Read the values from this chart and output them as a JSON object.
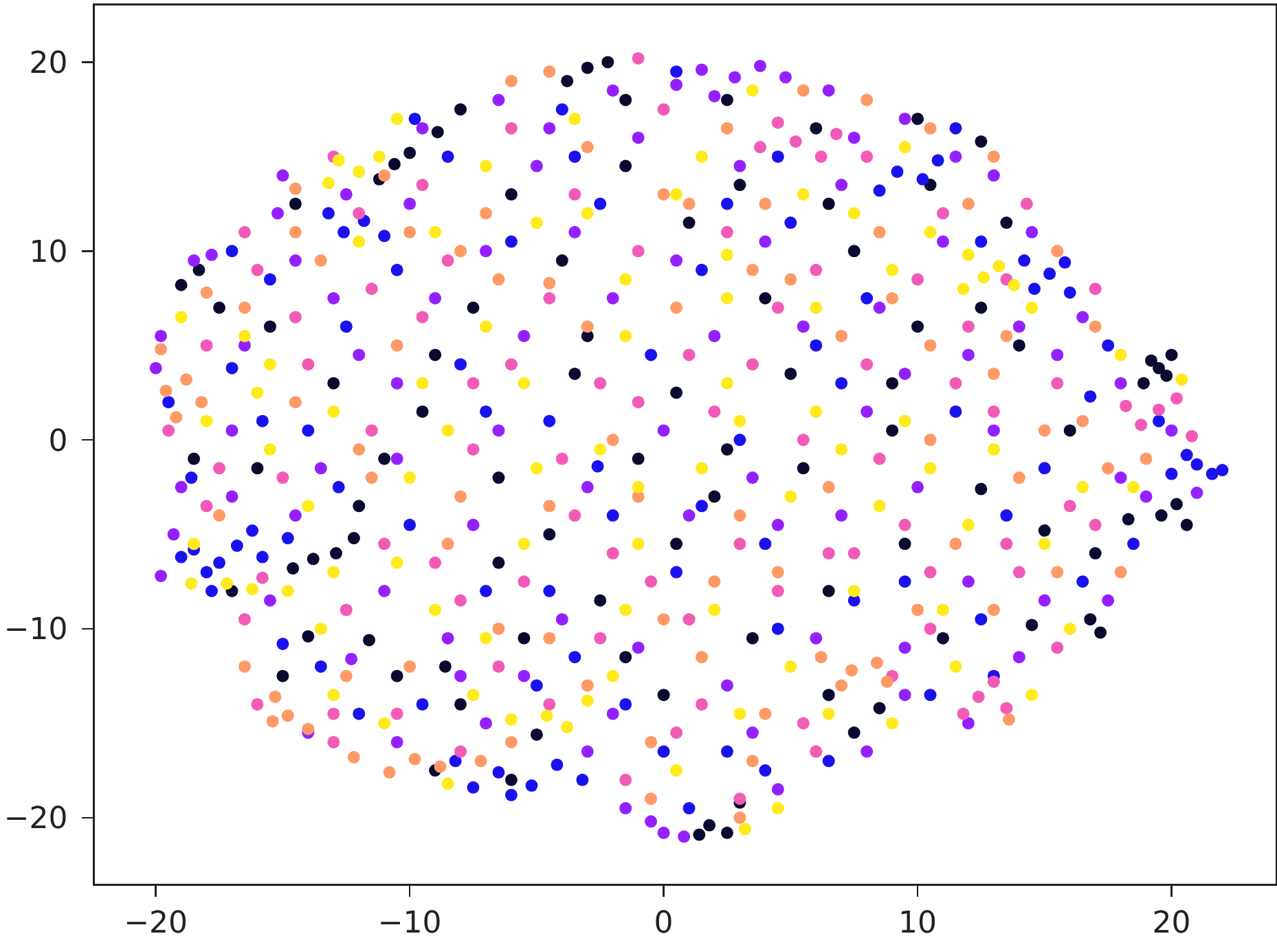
{
  "chart_data": {
    "type": "scatter",
    "xlim": [
      -22.4,
      24.1
    ],
    "ylim": [
      -23.5,
      23.0
    ],
    "xticks": [
      -20,
      -10,
      0,
      10,
      20
    ],
    "yticks": [
      -20,
      -10,
      0,
      10,
      20
    ],
    "grid": false,
    "marker": "circle",
    "series": [
      {
        "color": "#0a0a30",
        "x": [
          19.5,
          19.8,
          19.2,
          20.2,
          19.6,
          -10.6,
          -10.0,
          -3.0,
          -2.2,
          1.8,
          2.5,
          -13.8,
          -12.9,
          -19.0,
          -17.5,
          -8.6,
          -11.6,
          -14.0,
          -5.0,
          6.5,
          8.5,
          11.0,
          14.5,
          16.8,
          15.0,
          12.5,
          9.0,
          5.5,
          2.0,
          -1.0,
          0.5,
          -3.5,
          -6.5,
          -9.5,
          -13.0,
          -16.0,
          -7.5,
          -4.0,
          1.0,
          4.0,
          7.5,
          10.5,
          12.5,
          6.0,
          -6.0,
          -14.5,
          -17.0,
          -2.5,
          3.5,
          0.0,
          -9.0,
          -6.0,
          17.0,
          14.0,
          10.0,
          -12.0,
          -1.5,
          2.5,
          -8.0,
          -18.5,
          9.5,
          -4.5,
          5.0,
          18.9,
          20.0,
          18.3,
          20.6,
          -11.2,
          -8.9,
          -3.8,
          -1.5,
          3.0,
          1.4,
          -14.6,
          -12.2,
          -18.3,
          -8.0,
          -10.5,
          -6.5,
          -3.0,
          0.5,
          3.0,
          6.5,
          10.0,
          13.5,
          16.0,
          17.2,
          -15.5,
          -11.0,
          -5.5,
          -1.5,
          2.5,
          6.5,
          9.0,
          12.5,
          -15.0,
          -9.0,
          7.5
        ],
        "values": [
          3.8,
          3.4,
          4.2,
          -3.4,
          -4.0,
          14.6,
          15.2,
          19.7,
          20.0,
          -20.4,
          -20.8,
          -6.3,
          -6.0,
          8.2,
          7.0,
          -12.0,
          -10.6,
          -10.4,
          -15.6,
          -13.5,
          -14.2,
          -10.5,
          -9.8,
          -9.5,
          -4.8,
          -2.6,
          0.5,
          -1.5,
          -3.0,
          -1.0,
          2.5,
          3.5,
          -2.0,
          1.5,
          3.0,
          -1.5,
          7.0,
          9.5,
          11.5,
          7.5,
          10.0,
          13.5,
          15.8,
          16.5,
          13.0,
          12.5,
          -8.0,
          -8.5,
          -10.5,
          -13.5,
          -17.5,
          -18.0,
          -6.0,
          5.0,
          6.0,
          -3.5,
          14.5,
          18.0,
          17.5,
          -1.0,
          -5.5,
          -5.0,
          3.5,
          3.0,
          4.5,
          -4.2,
          -4.5,
          13.8,
          16.3,
          19.0,
          18.0,
          -19.2,
          -20.9,
          -6.8,
          -5.2,
          9.0,
          -14.0,
          -12.5,
          -6.5,
          5.5,
          -5.5,
          13.5,
          12.5,
          17.0,
          11.5,
          0.5,
          -10.2,
          6.0,
          -1.0,
          -10.5,
          -11.5,
          -0.5,
          -8.0,
          3.0,
          7.0,
          -12.5,
          4.5,
          -15.5
        ]
      },
      {
        "color": "#1a12ee",
        "x": [
          -18.5,
          -17.5,
          -16.8,
          -18.0,
          -6.5,
          -5.2,
          -7.5,
          -4.2,
          15.2,
          14.6,
          16.0,
          21.0,
          21.6,
          20.6,
          9.2,
          10.2,
          -11.8,
          -12.6,
          -13.5,
          -12.0,
          -9.5,
          -15.0,
          -19.5,
          -17.0,
          -15.5,
          -12.5,
          -10.0,
          -7.0,
          -3.5,
          0.5,
          4.0,
          7.5,
          10.5,
          13.0,
          16.5,
          18.5,
          15.0,
          11.5,
          7.0,
          3.0,
          -0.5,
          -4.5,
          -8.0,
          -10.5,
          -6.0,
          -2.5,
          1.5,
          5.0,
          8.0,
          12.5,
          -8.5,
          -4.0,
          0.5,
          4.5,
          11.5,
          -17.0,
          -1.5,
          2.5,
          1.0,
          6.5,
          19.5,
          17.5,
          -14.0,
          -2.0,
          -15.8,
          -14.8,
          -19.0,
          -16.2,
          -17.8,
          -8.2,
          -3.2,
          -6.0,
          14.2,
          15.8,
          22.0,
          20.0,
          -11.0,
          -13.2,
          8.5,
          10.8,
          -2.6,
          1.5,
          4.5,
          12.5,
          -12.8,
          -15.8,
          -18.6,
          -7.0,
          -4.5,
          6.0,
          9.5,
          13.5,
          16.8,
          2.5,
          -3.5,
          -9.8,
          0.0,
          4.0,
          -5.0
        ],
        "values": [
          -5.8,
          -6.5,
          -5.6,
          -7.0,
          -17.6,
          -18.3,
          -18.4,
          -17.2,
          8.8,
          8.0,
          7.8,
          -1.3,
          -1.8,
          -0.8,
          14.2,
          13.8,
          11.6,
          11.0,
          -12.0,
          -14.5,
          -14.0,
          -10.8,
          2.0,
          3.8,
          8.5,
          6.0,
          -4.5,
          -8.0,
          -11.5,
          -7.0,
          -5.5,
          -8.5,
          -13.5,
          -12.5,
          -7.5,
          -5.5,
          -1.5,
          1.5,
          3.0,
          0.0,
          4.5,
          1.0,
          4.0,
          9.0,
          10.5,
          12.5,
          9.0,
          11.5,
          7.5,
          10.5,
          15.0,
          17.5,
          19.5,
          15.0,
          16.5,
          10.0,
          -14.0,
          -16.5,
          -19.5,
          -17.0,
          1.0,
          5.0,
          0.5,
          -4.0,
          -6.2,
          -5.2,
          -6.2,
          -4.8,
          -8.0,
          -17.0,
          -18.0,
          -18.8,
          9.5,
          9.4,
          -1.6,
          -1.8,
          10.8,
          12.0,
          13.2,
          14.8,
          -1.4,
          -3.5,
          -10.0,
          -9.5,
          -2.5,
          1.0,
          -2.0,
          1.5,
          -8.0,
          5.0,
          -7.5,
          -4.0,
          2.3,
          12.5,
          15.0,
          17.0,
          -16.5,
          -17.5,
          -13.0
        ]
      },
      {
        "color": "#9420ff",
        "x": [
          1.5,
          2.8,
          3.8,
          -0.5,
          0.8,
          -15.0,
          -18.5,
          -19.8,
          -19.0,
          -19.8,
          -15.5,
          -14.0,
          -10.5,
          -7.0,
          -3.0,
          4.5,
          8.0,
          12.0,
          14.0,
          17.5,
          19.0,
          20.0,
          18.0,
          16.5,
          14.5,
          13.0,
          9.5,
          6.5,
          -2.0,
          -6.5,
          -9.5,
          -12.5,
          -14.5,
          -16.5,
          -17.0,
          -14.5,
          -11.0,
          -8.5,
          -5.5,
          -1.0,
          2.5,
          6.0,
          9.5,
          12.0,
          10.0,
          7.0,
          3.5,
          0.0,
          -3.0,
          -6.5,
          -10.5,
          -12.0,
          -9.0,
          -5.5,
          -2.0,
          2.0,
          5.5,
          9.5,
          13.0,
          14.0,
          11.0,
          7.0,
          3.0,
          -1.0,
          -5.0,
          -10.0,
          0.5,
          2.0,
          4.8,
          -1.5,
          0.0,
          -15.2,
          -17.8,
          -20.0,
          -19.3,
          -17.0,
          -12.3,
          -8.0,
          -2.0,
          3.5,
          9.5,
          15.0,
          18.0,
          21.0,
          15.5,
          12.0,
          8.0,
          4.5,
          1.0,
          -4.0,
          -7.5,
          -13.5,
          -10.5,
          -7.0,
          -3.5,
          0.5,
          4.0,
          8.5,
          11.5,
          7.5,
          -4.5,
          -13.0
        ],
        "values": [
          19.6,
          19.2,
          19.8,
          -20.2,
          -21.0,
          14.0,
          9.5,
          5.5,
          -2.5,
          -7.2,
          -8.5,
          -15.5,
          -16.0,
          -15.0,
          -16.5,
          -18.5,
          -16.5,
          -15.0,
          -11.5,
          -8.5,
          -3.0,
          0.5,
          3.0,
          6.5,
          11.0,
          14.0,
          17.0,
          18.5,
          18.5,
          18.0,
          16.5,
          13.0,
          9.5,
          5.0,
          0.5,
          -4.0,
          -8.0,
          -10.5,
          -12.5,
          -11.0,
          -13.0,
          -10.5,
          -11.0,
          -7.5,
          -2.5,
          -4.0,
          -2.0,
          0.5,
          -2.5,
          0.5,
          -1.0,
          4.5,
          7.5,
          5.5,
          7.5,
          5.5,
          6.0,
          3.5,
          0.5,
          6.0,
          10.5,
          13.5,
          14.5,
          16.0,
          14.5,
          12.5,
          18.8,
          18.2,
          19.2,
          -19.5,
          -20.8,
          12.0,
          9.8,
          3.8,
          -5.0,
          -3.0,
          -11.6,
          -12.5,
          -14.5,
          -15.5,
          -13.5,
          -8.5,
          -2.0,
          -2.8,
          4.5,
          4.5,
          1.5,
          -4.5,
          -4.0,
          -9.5,
          -4.5,
          -1.5,
          3.0,
          10.0,
          11.0,
          9.5,
          10.5,
          7.0,
          15.0,
          16.0,
          16.5,
          7.5
        ]
      },
      {
        "color": "#f25ab8",
        "x": [
          19.5,
          18.8,
          20.2,
          12.4,
          13.5,
          5.2,
          6.2,
          4.5,
          -16.0,
          -13.0,
          -8.0,
          -4.5,
          -1.5,
          3.0,
          5.5,
          9.0,
          15.5,
          16.0,
          13.5,
          10.5,
          7.5,
          4.5,
          1.0,
          -2.0,
          -5.5,
          -9.0,
          -12.5,
          -16.5,
          -18.0,
          -15.0,
          -11.5,
          -7.5,
          -4.0,
          -1.0,
          2.0,
          5.5,
          8.5,
          11.5,
          15.5,
          17.0,
          13.5,
          10.0,
          6.0,
          2.5,
          -1.0,
          -4.5,
          -8.5,
          -11.5,
          -14.5,
          -18.0,
          -19.5,
          -16.5,
          -13.0,
          -9.5,
          -6.0,
          -3.5,
          0.0,
          8.0,
          11.0,
          3.5,
          -7.5,
          0.5,
          18.2,
          20.8,
          13.0,
          11.8,
          6.8,
          3.8,
          -13.0,
          -10.5,
          -6.5,
          -2.5,
          1.5,
          6.0,
          10.5,
          14.0,
          17.0,
          13.0,
          9.5,
          6.5,
          3.0,
          -0.5,
          -3.5,
          -8.0,
          -11.0,
          -15.8,
          -17.5,
          -14.0,
          -9.5,
          -6.0,
          -2.5,
          1.0,
          4.5,
          8.0,
          12.0,
          14.3,
          -12.0,
          -16.0,
          -1.0
        ],
        "values": [
          1.6,
          0.8,
          2.2,
          -13.6,
          -14.2,
          15.8,
          15.0,
          16.8,
          -14.0,
          -16.0,
          -16.5,
          -14.0,
          -18.0,
          -19.0,
          -15.0,
          -12.5,
          -11.0,
          -3.5,
          -5.5,
          -7.0,
          -6.0,
          -8.0,
          -9.5,
          -6.0,
          -7.5,
          -6.5,
          -9.0,
          -9.5,
          -3.5,
          -2.0,
          0.5,
          -0.5,
          -1.0,
          2.0,
          1.5,
          0.0,
          -1.0,
          3.0,
          3.0,
          8.0,
          8.5,
          8.5,
          9.0,
          11.0,
          10.0,
          7.5,
          9.5,
          8.0,
          6.5,
          5.0,
          0.5,
          11.0,
          15.0,
          13.5,
          16.5,
          13.0,
          17.5,
          15.0,
          12.0,
          4.0,
          3.0,
          -15.5,
          1.8,
          0.2,
          -12.8,
          -14.5,
          16.2,
          15.5,
          -14.5,
          -14.5,
          -12.0,
          -10.5,
          -14.0,
          -16.5,
          -10.0,
          -7.0,
          -4.5,
          1.5,
          -4.5,
          -6.0,
          -5.5,
          -7.5,
          -4.0,
          -8.5,
          -5.5,
          -7.3,
          -1.5,
          4.0,
          6.5,
          4.0,
          3.0,
          4.5,
          7.0,
          4.0,
          6.0,
          12.5,
          12.0,
          9.0,
          20.2
        ]
      },
      {
        "color": "#ff9966",
        "x": [
          -14.8,
          -14.0,
          -15.3,
          -9.8,
          -8.8,
          -18.8,
          -19.6,
          -18.2,
          7.4,
          8.4,
          7.0,
          -16.5,
          -12.5,
          -10.0,
          -6.5,
          -3.0,
          1.5,
          4.0,
          10.0,
          13.0,
          15.5,
          18.0,
          17.5,
          14.0,
          10.5,
          6.5,
          3.0,
          -1.0,
          -4.5,
          -8.0,
          -11.5,
          -14.5,
          -16.5,
          -18.0,
          -13.5,
          -10.5,
          -6.5,
          -3.0,
          0.5,
          3.5,
          7.0,
          10.5,
          13.0,
          16.5,
          15.5,
          12.0,
          8.5,
          4.0,
          0.0,
          -3.0,
          -7.0,
          -11.0,
          -14.5,
          2.5,
          -4.5,
          8.0,
          -2.0,
          2.0,
          -6.0,
          3.0,
          -0.5,
          -15.4,
          -12.2,
          -10.8,
          -7.2,
          -19.8,
          -19.2,
          6.2,
          8.8,
          13.6,
          -17.5,
          -12.0,
          -8.5,
          -4.5,
          0.0,
          4.5,
          11.5,
          15.0,
          19.0,
          13.5,
          9.0,
          5.0,
          1.0,
          -4.5,
          -8.0,
          -10.0,
          -14.5,
          -6.0,
          5.5,
          10.5,
          13.0,
          17.0,
          -0.5,
          3.5
        ],
        "values": [
          -14.6,
          -15.3,
          -13.6,
          -16.9,
          -17.3,
          3.2,
          2.6,
          2.0,
          -12.2,
          -11.8,
          -13.0,
          -12.0,
          -12.5,
          -12.0,
          -10.0,
          -13.0,
          -11.5,
          -14.5,
          -9.0,
          -9.0,
          -7.0,
          -7.0,
          -1.5,
          -2.0,
          0.0,
          -2.5,
          -4.0,
          -3.0,
          -3.5,
          -3.0,
          -2.0,
          2.0,
          7.0,
          7.8,
          9.5,
          5.0,
          8.5,
          6.0,
          7.0,
          9.0,
          5.5,
          5.0,
          3.5,
          1.0,
          10.0,
          12.5,
          11.0,
          12.5,
          13.0,
          15.5,
          12.0,
          14.0,
          11.0,
          16.5,
          19.5,
          18.0,
          0.0,
          -7.5,
          -16.0,
          -20.0,
          -19.0,
          -14.9,
          -16.8,
          -17.6,
          -17.0,
          4.8,
          1.2,
          -11.5,
          -12.8,
          -14.8,
          -4.0,
          -0.5,
          -5.5,
          -10.5,
          -9.5,
          -7.0,
          -5.5,
          0.5,
          -1.0,
          5.5,
          7.5,
          8.5,
          12.5,
          8.3,
          10.0,
          11.0,
          13.3,
          19.0,
          18.5,
          16.5,
          15.0,
          6.0,
          -16.0,
          -17.0
        ]
      },
      {
        "color": "#ffea1c",
        "x": [
          12.6,
          13.2,
          11.8,
          -12.0,
          -12.8,
          -17.2,
          -16.2,
          -4.6,
          -3.8,
          -13.0,
          -11.0,
          -7.5,
          -1.5,
          2.0,
          5.0,
          9.0,
          11.5,
          14.5,
          16.0,
          12.0,
          8.5,
          5.0,
          1.5,
          -2.5,
          -5.5,
          -9.0,
          -13.0,
          -10.0,
          -13.0,
          -16.0,
          -19.0,
          -15.5,
          -12.0,
          -9.0,
          -5.0,
          -1.5,
          2.5,
          6.0,
          9.0,
          14.5,
          18.0,
          16.5,
          13.0,
          9.5,
          6.0,
          2.5,
          -1.5,
          -5.5,
          -8.5,
          -7.0,
          -3.5,
          1.5,
          5.5,
          9.5,
          -15.5,
          -18.5,
          0.5,
          4.5,
          -1.0,
          7.5,
          -10.5,
          3.5,
          12.0,
          13.8,
          -11.2,
          -13.2,
          -18.6,
          -14.8,
          -3.0,
          -6.0,
          -18.0,
          -14.0,
          -10.5,
          -7.0,
          -2.0,
          3.0,
          6.5,
          11.0,
          15.0,
          18.5,
          20.4,
          10.5,
          7.0,
          3.0,
          -1.0,
          -5.0,
          -9.5,
          -7.0,
          -3.0,
          0.5,
          2.5,
          7.5,
          10.5,
          -16.5,
          -13.5,
          -8.5,
          3.2
        ],
        "values": [
          8.6,
          9.2,
          8.0,
          14.2,
          14.8,
          -7.6,
          -7.9,
          -14.6,
          -15.2,
          -13.5,
          -15.0,
          -13.5,
          -9.0,
          -9.0,
          -12.0,
          -15.0,
          -12.0,
          -13.5,
          -10.0,
          -4.5,
          -3.5,
          -3.0,
          -1.5,
          -0.5,
          -5.5,
          -9.0,
          -7.0,
          -2.0,
          1.5,
          2.5,
          6.5,
          4.0,
          10.5,
          11.0,
          11.5,
          8.5,
          7.5,
          7.0,
          9.0,
          7.0,
          4.5,
          -2.5,
          -0.5,
          1.0,
          1.5,
          3.0,
          5.5,
          3.0,
          0.5,
          14.5,
          17.0,
          15.0,
          13.0,
          15.5,
          -0.5,
          -5.5,
          -17.5,
          -19.5,
          -5.5,
          -8.0,
          17.0,
          18.5,
          9.8,
          8.2,
          15.0,
          13.6,
          -7.6,
          -8.0,
          -13.8,
          -14.8,
          1.0,
          -3.5,
          -6.5,
          -10.5,
          -12.5,
          -14.5,
          -14.5,
          -9.0,
          -5.5,
          -2.5,
          3.2,
          -1.5,
          -0.5,
          1.0,
          -2.5,
          -1.5,
          3.0,
          6.0,
          12.0,
          13.0,
          9.8,
          12.0,
          11.0,
          5.5,
          -10.0,
          -18.2,
          -20.6
        ]
      }
    ]
  }
}
